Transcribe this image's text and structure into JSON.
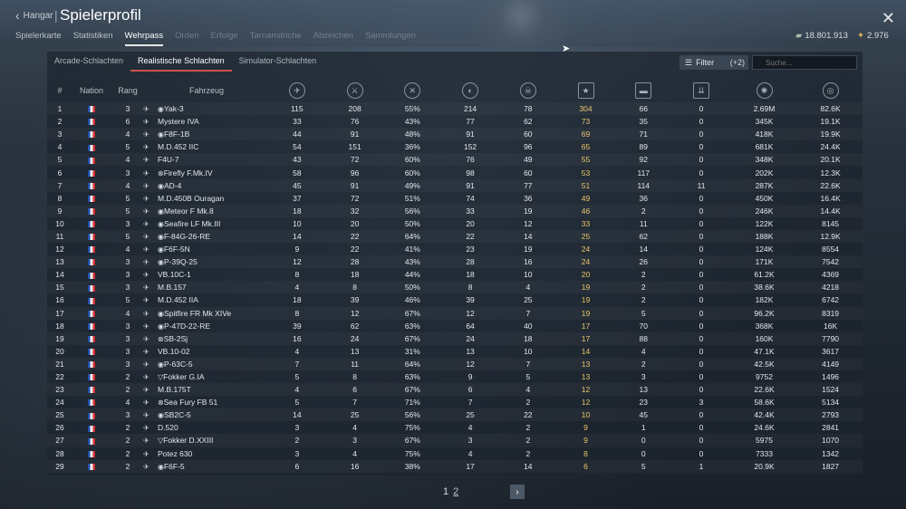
{
  "header": {
    "back_label": "Hangar",
    "title": "Spielerprofil",
    "tabs": [
      "Spielerkarte",
      "Statistiken",
      "Wehrpass",
      "Orden",
      "Erfolge",
      "Tarnanstriche",
      "Abzeichen",
      "Sammlungen"
    ],
    "active_tab": "Wehrpass",
    "silver_lions": "18.801.913",
    "golden_eagles": "2.976"
  },
  "modes": {
    "items": [
      "Arcade-Schlachten",
      "Realistische Schlachten",
      "Simulator-Schlachten"
    ],
    "active": "Realistische Schlachten"
  },
  "filter": {
    "label": "Filter",
    "count": "(+2)"
  },
  "search": {
    "placeholder": "Suche..."
  },
  "table": {
    "headers": {
      "num": "#",
      "nation": "Nation",
      "rank": "Rang",
      "vehicle": "Fahrzeug"
    },
    "stat_icons": [
      "missions-icon",
      "victories-icon",
      "win-rate-icon",
      "respawns-icon",
      "deaths-icon",
      "air-kills-icon",
      "ground-kills-icon",
      "naval-kills-icon",
      "xp-icon",
      "activity-icon"
    ],
    "rows": [
      [
        "1",
        "3",
        "Yak-3",
        "115",
        "208",
        "55%",
        "214",
        "78",
        "304",
        "66",
        "0",
        "2.69M",
        "82.6K"
      ],
      [
        "2",
        "6",
        "Mystere IVA",
        "33",
        "76",
        "43%",
        "77",
        "62",
        "73",
        "35",
        "0",
        "345K",
        "19.1K"
      ],
      [
        "3",
        "4",
        "F8F-1B",
        "44",
        "91",
        "48%",
        "91",
        "60",
        "69",
        "71",
        "0",
        "418K",
        "19.9K"
      ],
      [
        "4",
        "5",
        "M.D.452 IIC",
        "54",
        "151",
        "36%",
        "152",
        "96",
        "65",
        "89",
        "0",
        "681K",
        "24.4K"
      ],
      [
        "5",
        "4",
        "F4U-7",
        "43",
        "72",
        "60%",
        "76",
        "49",
        "55",
        "92",
        "0",
        "348K",
        "20.1K"
      ],
      [
        "6",
        "3",
        "Firefly F.Mk.IV",
        "58",
        "96",
        "60%",
        "98",
        "60",
        "53",
        "117",
        "0",
        "202K",
        "12.3K"
      ],
      [
        "7",
        "4",
        "AD-4",
        "45",
        "91",
        "49%",
        "91",
        "77",
        "51",
        "114",
        "11",
        "287K",
        "22.6K"
      ],
      [
        "8",
        "5",
        "M.D.450B Ouragan",
        "37",
        "72",
        "51%",
        "74",
        "36",
        "49",
        "36",
        "0",
        "450K",
        "16.4K"
      ],
      [
        "9",
        "5",
        "Meteor F Mk.8",
        "18",
        "32",
        "56%",
        "33",
        "19",
        "46",
        "2",
        "0",
        "246K",
        "14.4K"
      ],
      [
        "10",
        "3",
        "Seafire LF Mk.III",
        "10",
        "20",
        "50%",
        "20",
        "12",
        "33",
        "11",
        "0",
        "122K",
        "8145"
      ],
      [
        "11",
        "5",
        "F-84G-26-RE",
        "14",
        "22",
        "64%",
        "22",
        "14",
        "25",
        "62",
        "0",
        "188K",
        "12.9K"
      ],
      [
        "12",
        "4",
        "F6F-5N",
        "9",
        "22",
        "41%",
        "23",
        "19",
        "24",
        "14",
        "0",
        "124K",
        "8554"
      ],
      [
        "13",
        "3",
        "P-39Q-25",
        "12",
        "28",
        "43%",
        "28",
        "16",
        "24",
        "26",
        "0",
        "171K",
        "7542"
      ],
      [
        "14",
        "3",
        "VB.10C-1",
        "8",
        "18",
        "44%",
        "18",
        "10",
        "20",
        "2",
        "0",
        "61.2K",
        "4369"
      ],
      [
        "15",
        "3",
        "M.B.157",
        "4",
        "8",
        "50%",
        "8",
        "4",
        "19",
        "2",
        "0",
        "38.6K",
        "4218"
      ],
      [
        "16",
        "5",
        "M.D.452 IIA",
        "18",
        "39",
        "46%",
        "39",
        "25",
        "19",
        "2",
        "0",
        "182K",
        "6742"
      ],
      [
        "17",
        "4",
        "Spitfire FR Mk XIVe",
        "8",
        "12",
        "67%",
        "12",
        "7",
        "19",
        "5",
        "0",
        "96.2K",
        "8319"
      ],
      [
        "18",
        "3",
        "P-47D-22-RE",
        "39",
        "62",
        "63%",
        "64",
        "40",
        "17",
        "70",
        "0",
        "368K",
        "16K"
      ],
      [
        "19",
        "3",
        "SB-2Sj",
        "16",
        "24",
        "67%",
        "24",
        "18",
        "17",
        "88",
        "0",
        "160K",
        "7790"
      ],
      [
        "20",
        "3",
        "VB.10-02",
        "4",
        "13",
        "31%",
        "13",
        "10",
        "14",
        "4",
        "0",
        "47.1K",
        "3617"
      ],
      [
        "21",
        "3",
        "P-63C-5",
        "7",
        "11",
        "64%",
        "12",
        "7",
        "13",
        "2",
        "0",
        "42.5K",
        "4149"
      ],
      [
        "22",
        "2",
        "Fokker G.IA",
        "5",
        "8",
        "63%",
        "9",
        "5",
        "13",
        "3",
        "0",
        "9752",
        "1496"
      ],
      [
        "23",
        "2",
        "M.B.175T",
        "4",
        "6",
        "67%",
        "6",
        "4",
        "12",
        "13",
        "0",
        "22.6K",
        "1524"
      ],
      [
        "24",
        "4",
        "Sea Fury FB 51",
        "5",
        "7",
        "71%",
        "7",
        "2",
        "12",
        "23",
        "3",
        "58.6K",
        "5134"
      ],
      [
        "25",
        "3",
        "SB2C-5",
        "14",
        "25",
        "56%",
        "25",
        "22",
        "10",
        "45",
        "0",
        "42.4K",
        "2793"
      ],
      [
        "26",
        "2",
        "D.520",
        "3",
        "4",
        "75%",
        "4",
        "2",
        "9",
        "1",
        "0",
        "24.6K",
        "2841"
      ],
      [
        "27",
        "2",
        "Fokker D.XXIII",
        "2",
        "3",
        "67%",
        "3",
        "2",
        "9",
        "0",
        "0",
        "5975",
        "1070"
      ],
      [
        "28",
        "2",
        "Potez 630",
        "3",
        "4",
        "75%",
        "4",
        "2",
        "8",
        "0",
        "0",
        "7333",
        "1342"
      ],
      [
        "29",
        "2",
        "F6F-5",
        "6",
        "16",
        "38%",
        "17",
        "14",
        "6",
        "5",
        "1",
        "20.9K",
        "1827"
      ]
    ],
    "marks": [
      "◉",
      "",
      "◉",
      "",
      "",
      "⊗",
      "◉",
      "",
      "◉",
      "◉",
      "◉",
      "◉",
      "◉",
      "",
      "",
      "",
      "◉",
      "◉",
      "⊗",
      "",
      "◉",
      "▽",
      "",
      "⊗",
      "◉",
      "",
      "▽",
      "",
      "◉"
    ]
  },
  "pagination": {
    "current": "1",
    "next_page": "2",
    "next_button": "›"
  }
}
